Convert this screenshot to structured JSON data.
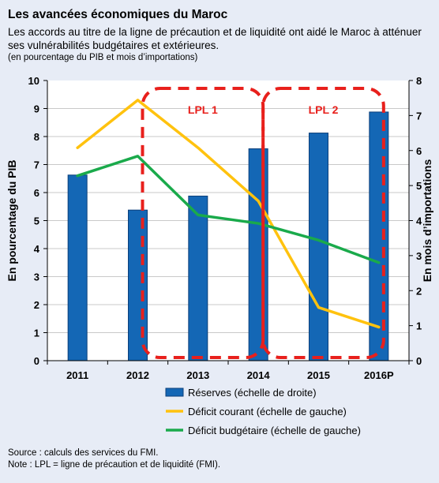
{
  "header": {
    "title": "Les avancées économiques du Maroc",
    "subtitle": "Les accords au titre de la ligne de précaution et de liquidité ont aidé le Maroc à atténuer ses vulnérabilités budgétaires et extérieures.",
    "unit_note": "(en pourcentage du PIB et mois d’importations)"
  },
  "chart_data": {
    "type": "bar+line",
    "categories": [
      "2011",
      "2012",
      "2013",
      "2014",
      "2015",
      "2016P"
    ],
    "left_axis": {
      "label": "En pourcentage du PIB",
      "range": [
        0,
        10
      ],
      "ticks": [
        "0",
        "1",
        "2",
        "3",
        "4",
        "5",
        "6",
        "7",
        "8",
        "9",
        "10"
      ]
    },
    "right_axis": {
      "label": "En mois d’importations",
      "range": [
        0,
        8
      ],
      "ticks": [
        "0",
        "1",
        "2",
        "3",
        "4",
        "5",
        "6",
        "7",
        "8"
      ]
    },
    "series": [
      {
        "name": "Réserves (échelle de droite)",
        "kind": "bar",
        "axis": "right",
        "color": "#1467b5",
        "values": [
          5.3,
          4.3,
          4.7,
          6.05,
          6.5,
          7.1
        ]
      },
      {
        "name": "Déficit courant (échelle de gauche)",
        "kind": "line",
        "axis": "left",
        "color": "#ffc20e",
        "values": [
          7.6,
          9.3,
          7.6,
          5.7,
          1.9,
          1.2
        ]
      },
      {
        "name": "Déficit budgétaire (échelle de gauche)",
        "kind": "line",
        "axis": "left",
        "color": "#1aaa4b",
        "values": [
          6.6,
          7.3,
          5.2,
          4.9,
          4.3,
          3.5
        ]
      }
    ],
    "annotations": [
      {
        "label": "LPL 1",
        "from": "2012",
        "to": "2014",
        "color": "#e8201c"
      },
      {
        "label": "LPL 2",
        "from": "2014",
        "to": "2016P",
        "color": "#e8201c"
      }
    ],
    "grid": "horizontal",
    "legend_position": "bottom"
  },
  "footer": {
    "source": "Source : calculs des services du FMI.",
    "note": "Note : LPL = ligne de précaution et de liquidité (FMI)."
  }
}
